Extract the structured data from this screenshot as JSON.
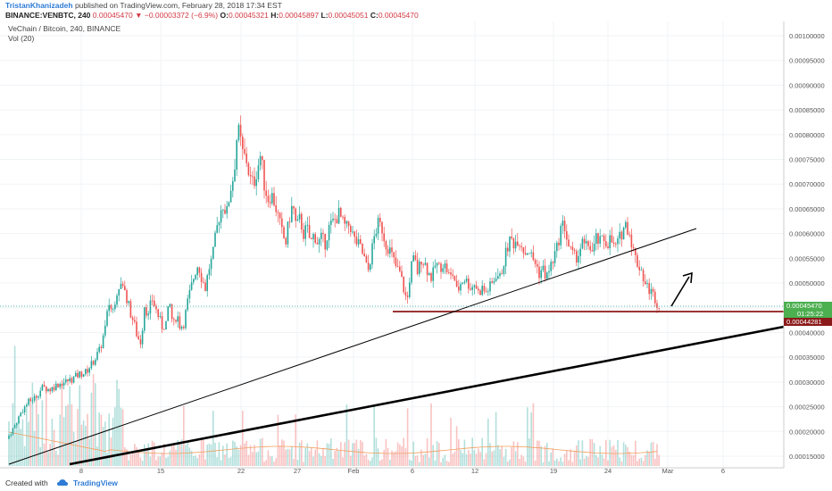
{
  "header": {
    "author": "TristanKhanizadeh",
    "published": "published on TradingView.com, February 28, 2018 17:34 EST",
    "symbol": "BINANCE:VENBTC, 240",
    "last": "0.00045470",
    "change": "−0.00003372 (−6.9%)",
    "o_label": "O:",
    "o_value": "0.00045321",
    "h_label": "H:",
    "h_value": "0.00045897",
    "l_label": "L:",
    "l_value": "0.00045051",
    "c_label": "C:",
    "c_value": "0.00045470"
  },
  "legend": {
    "title": "VeChain / Bitcoin, 240, BINANCE",
    "volume": "Vol (20)"
  },
  "footer": {
    "created_with": "Created with",
    "brand": "TradingView"
  },
  "colors": {
    "up": "#26a69a",
    "down": "#ef5350",
    "support": "#8b1a1a",
    "trend": "#000000"
  },
  "chart_data": {
    "type": "candlestick",
    "y_ticks": [
      "0.00100000",
      "0.00095000",
      "0.00090000",
      "0.00085000",
      "0.00080000",
      "0.00075000",
      "0.00070000",
      "0.00065000",
      "0.00060000",
      "0.00055000",
      "0.00050000",
      "0.00045000",
      "0.00040000",
      "0.00035000",
      "0.00030000",
      "0.00025000",
      "0.00020000",
      "0.00015000"
    ],
    "x_ticks": [
      "8",
      "15",
      "22",
      "27",
      "Feb",
      "6",
      "12",
      "19",
      "24",
      "Mar",
      "6"
    ],
    "price_label": "0.00045470",
    "countdown_label": "01:25:22",
    "support_label": "0.00044281",
    "support_level": 0.00044281,
    "close_path": [
      [
        0,
        0.000162
      ],
      [
        8,
        0.000185
      ],
      [
        16,
        0.00021
      ],
      [
        24,
        0.00024
      ],
      [
        32,
        0.00026
      ],
      [
        40,
        0.00027
      ],
      [
        48,
        0.00029
      ],
      [
        56,
        0.000285
      ],
      [
        64,
        0.000295
      ],
      [
        72,
        0.0003
      ],
      [
        80,
        0.000305
      ],
      [
        88,
        0.000315
      ],
      [
        96,
        0.00032
      ],
      [
        104,
        0.00034
      ],
      [
        112,
        0.000365
      ],
      [
        118,
        0.00041
      ],
      [
        122,
        0.00046
      ],
      [
        126,
        0.00044
      ],
      [
        130,
        0.00048
      ],
      [
        134,
        0.0005
      ],
      [
        138,
        0.00049
      ],
      [
        142,
        0.00047
      ],
      [
        146,
        0.00044
      ],
      [
        150,
        0.00042
      ],
      [
        154,
        0.00039
      ],
      [
        158,
        0.00038
      ],
      [
        162,
        0.00046
      ],
      [
        166,
        0.00043
      ],
      [
        170,
        0.00047
      ],
      [
        174,
        0.00045
      ],
      [
        178,
        0.00043
      ],
      [
        182,
        0.00041
      ],
      [
        186,
        0.00042
      ],
      [
        190,
        0.00046
      ],
      [
        194,
        0.00041
      ],
      [
        198,
        0.00044
      ],
      [
        202,
        0.00041
      ],
      [
        206,
        0.00042
      ],
      [
        210,
        0.00046
      ],
      [
        214,
        0.00049
      ],
      [
        218,
        0.00052
      ],
      [
        222,
        0.00054
      ],
      [
        226,
        0.00051
      ],
      [
        230,
        0.00049
      ],
      [
        234,
        0.00053
      ],
      [
        238,
        0.00055
      ],
      [
        242,
        0.0006
      ],
      [
        246,
        0.00064
      ],
      [
        250,
        0.00066
      ],
      [
        254,
        0.00064
      ],
      [
        258,
        0.00069
      ],
      [
        262,
        0.00072
      ],
      [
        266,
        0.00081
      ],
      [
        268,
        0.0008
      ],
      [
        270,
        0.00078
      ],
      [
        272,
        0.00076
      ],
      [
        276,
        0.00075
      ],
      [
        280,
        0.00071
      ],
      [
        284,
        0.0007
      ],
      [
        288,
        0.00073
      ],
      [
        292,
        0.00076
      ],
      [
        296,
        0.0007
      ],
      [
        300,
        0.00067
      ],
      [
        304,
        0.00068
      ],
      [
        308,
        0.00066
      ],
      [
        312,
        0.00063
      ],
      [
        316,
        0.0006
      ],
      [
        320,
        0.00058
      ],
      [
        324,
        0.00063
      ],
      [
        328,
        0.00066
      ],
      [
        332,
        0.00061
      ],
      [
        336,
        0.00063
      ],
      [
        340,
        0.0006
      ],
      [
        344,
        0.00061
      ],
      [
        348,
        0.00058
      ],
      [
        352,
        0.0006
      ],
      [
        356,
        0.00058
      ],
      [
        360,
        0.00059
      ],
      [
        364,
        0.00058
      ],
      [
        368,
        0.00061
      ],
      [
        372,
        0.00062
      ],
      [
        376,
        0.00063
      ],
      [
        380,
        0.00064
      ],
      [
        384,
        0.00062
      ],
      [
        388,
        0.00061
      ],
      [
        392,
        0.00062
      ],
      [
        396,
        0.00059
      ],
      [
        400,
        0.00058
      ],
      [
        404,
        0.00057
      ],
      [
        408,
        0.00055
      ],
      [
        412,
        0.00052
      ],
      [
        416,
        0.00056
      ],
      [
        420,
        0.0006
      ],
      [
        424,
        0.00062
      ],
      [
        428,
        0.00061
      ],
      [
        432,
        0.00058
      ],
      [
        436,
        0.00057
      ],
      [
        440,
        0.00055
      ],
      [
        444,
        0.00053
      ],
      [
        448,
        0.00052
      ],
      [
        452,
        0.00049
      ],
      [
        456,
        0.00046
      ],
      [
        460,
        0.00053
      ],
      [
        464,
        0.00055
      ],
      [
        468,
        0.00052
      ],
      [
        472,
        0.00055
      ],
      [
        476,
        0.00054
      ],
      [
        480,
        0.00052
      ],
      [
        484,
        0.00051
      ],
      [
        488,
        0.00054
      ],
      [
        492,
        0.00053
      ],
      [
        496,
        0.00054
      ],
      [
        500,
        0.00053
      ],
      [
        504,
        0.00051
      ],
      [
        508,
        0.00052
      ],
      [
        512,
        0.00048
      ],
      [
        516,
        0.0005
      ],
      [
        520,
        0.00051
      ],
      [
        524,
        0.0005
      ],
      [
        528,
        0.00049
      ],
      [
        532,
        0.0005
      ],
      [
        536,
        0.00048
      ],
      [
        540,
        0.00049
      ],
      [
        544,
        0.00048
      ],
      [
        548,
        0.00049
      ],
      [
        552,
        0.0005
      ],
      [
        556,
        0.00052
      ],
      [
        560,
        0.00051
      ],
      [
        564,
        0.00054
      ],
      [
        568,
        0.00057
      ],
      [
        572,
        0.00059
      ],
      [
        576,
        0.00058
      ],
      [
        580,
        0.00059
      ],
      [
        584,
        0.00058
      ],
      [
        588,
        0.00056
      ],
      [
        592,
        0.00057
      ],
      [
        596,
        0.00055
      ],
      [
        600,
        0.00054
      ],
      [
        604,
        0.00052
      ],
      [
        608,
        0.00053
      ],
      [
        612,
        0.00051
      ],
      [
        616,
        0.00053
      ],
      [
        620,
        0.00055
      ],
      [
        624,
        0.00057
      ],
      [
        628,
        0.00061
      ],
      [
        632,
        0.00062
      ],
      [
        636,
        0.00058
      ],
      [
        640,
        0.00056
      ],
      [
        644,
        0.00055
      ],
      [
        648,
        0.00056
      ],
      [
        652,
        0.00058
      ],
      [
        656,
        0.00057
      ],
      [
        660,
        0.00058
      ],
      [
        664,
        0.00056
      ],
      [
        668,
        0.00059
      ],
      [
        672,
        0.00058
      ],
      [
        676,
        0.00059
      ],
      [
        680,
        0.00058
      ],
      [
        684,
        0.00059
      ],
      [
        688,
        0.00057
      ],
      [
        692,
        0.00058
      ],
      [
        696,
        0.0006
      ],
      [
        700,
        0.00062
      ],
      [
        704,
        0.00061
      ],
      [
        708,
        0.00058
      ],
      [
        710,
        0.00056
      ],
      [
        714,
        0.00054
      ],
      [
        718,
        0.00053
      ],
      [
        722,
        0.0005
      ],
      [
        726,
        0.00049
      ],
      [
        730,
        0.00048
      ],
      [
        734,
        0.00047
      ],
      [
        738,
        0.00045
      ],
      [
        740,
        0.000455
      ]
    ],
    "x_range": [
      0,
      878
    ],
    "y_range": [
      0.000139,
      0.001018
    ]
  }
}
